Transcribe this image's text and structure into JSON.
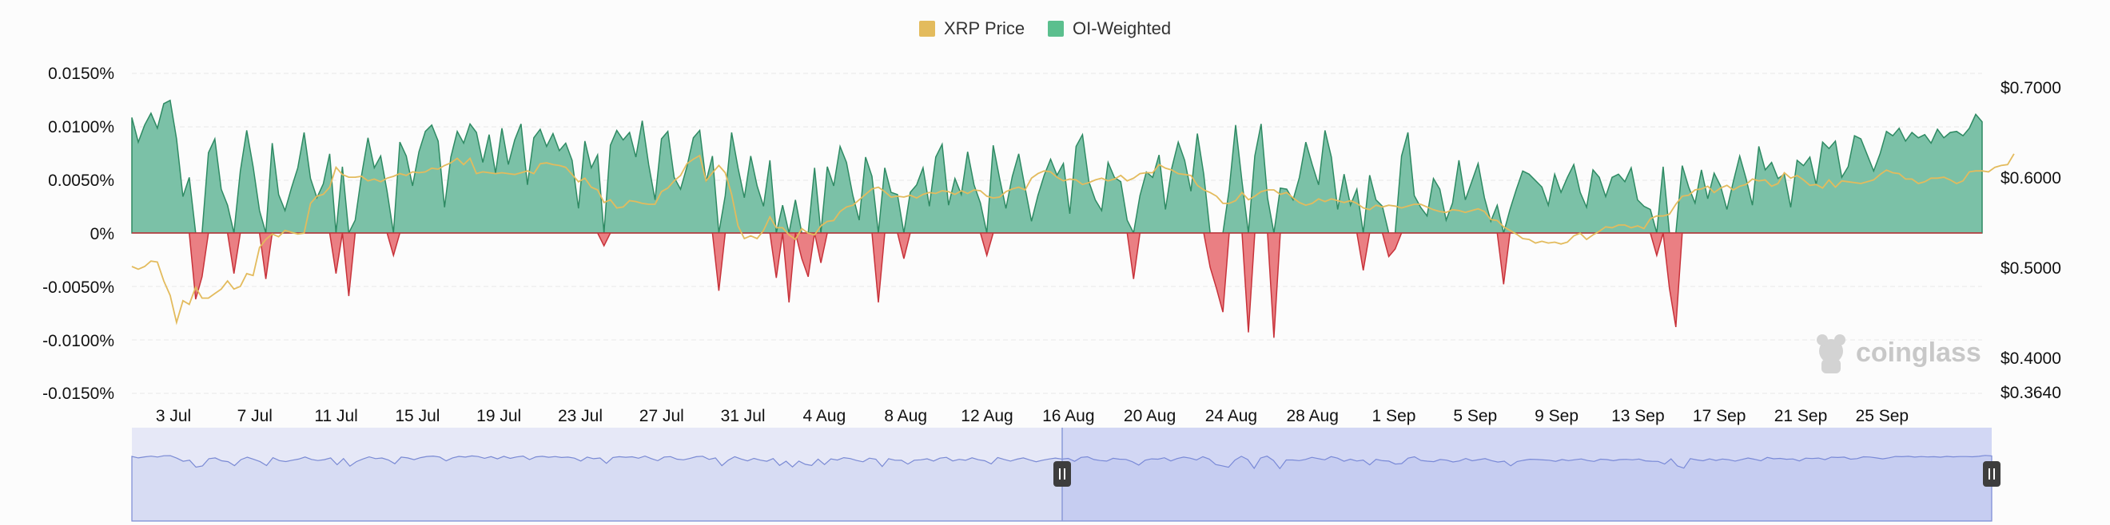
{
  "legend": [
    {
      "label": "XRP Price",
      "color": "#e3bb5d"
    },
    {
      "label": "OI-Weighted",
      "color": "#5bbf8e"
    }
  ],
  "watermark": "coinglass",
  "colors": {
    "positive_fill": "#7bc1a7",
    "positive_stroke": "#2e8a63",
    "negative_fill": "#ea7f83",
    "negative_stroke": "#c7323a",
    "price_line": "#e3bb5d",
    "grid": "#e9e9e9",
    "navigator_fill": "#e6e8f7",
    "navigator_line": "#7a8ad4",
    "navigator_selection": "rgba(120,140,235,0.18)"
  },
  "chart_data": {
    "type": "area",
    "series": [
      {
        "name": "OI-Weighted",
        "axis": "left",
        "unit": "%",
        "values": [
          0.0108,
          0.0085,
          0.0101,
          0.0112,
          0.0098,
          0.0121,
          0.0124,
          0.0088,
          0.0034,
          0.0052,
          -0.0062,
          -0.0041,
          0.0075,
          0.0088,
          0.0041,
          0.0026,
          -0.0038,
          0.0058,
          0.0096,
          0.0062,
          0.0021,
          -0.0043,
          0.0084,
          0.0036,
          0.0021,
          0.0042,
          0.0061,
          0.0094,
          0.0051,
          0.0033,
          0.0046,
          0.0074,
          -0.0038,
          0.0062,
          -0.0059,
          0.0012,
          0.0054,
          0.0089,
          0.0061,
          0.0072,
          0.0039,
          -0.0021,
          0.0085,
          0.0072,
          0.0044,
          0.0076,
          0.0095,
          0.0101,
          0.0086,
          0.0024,
          0.0071,
          0.0095,
          0.0084,
          0.0102,
          0.0094,
          0.0066,
          0.0092,
          0.0056,
          0.0098,
          0.0064,
          0.0087,
          0.0102,
          0.0045,
          0.0089,
          0.0097,
          0.0081,
          0.0093,
          0.0077,
          0.0084,
          0.0068,
          0.0023,
          0.0086,
          0.0061,
          0.0073,
          -0.0012,
          0.0082,
          0.0096,
          0.0087,
          0.0094,
          0.0071,
          0.0105,
          0.0064,
          0.0031,
          0.0088,
          0.0095,
          0.0052,
          0.0041,
          0.0062,
          0.0089,
          0.0096,
          0.0048,
          0.0072,
          -0.0054,
          0.0035,
          0.0094,
          0.0061,
          0.0033,
          0.0072,
          0.0044,
          0.0025,
          0.0068,
          -0.0042,
          0.0026,
          -0.0065,
          0.0031,
          -0.0024,
          -0.0041,
          0.0061,
          -0.0028,
          0.0062,
          0.0044,
          0.0081,
          0.0066,
          0.0035,
          0.0012,
          0.0071,
          0.0053,
          -0.0065,
          0.0061,
          0.0038,
          0.0036,
          -0.0024,
          0.0038,
          0.0045,
          0.0061,
          0.0025,
          0.0071,
          0.0083,
          0.0026,
          0.0051,
          0.0036,
          0.0076,
          0.0045,
          0.0028,
          -0.0021,
          0.0082,
          0.0051,
          0.0023,
          0.0053,
          0.0074,
          0.0042,
          0.0011,
          0.0035,
          0.0054,
          0.0069,
          0.0054,
          0.0065,
          0.0018,
          0.0081,
          0.0092,
          0.0048,
          0.0031,
          0.0021,
          0.0066,
          0.0052,
          0.0048,
          0.0012,
          -0.0043,
          0.0035,
          0.0057,
          0.0052,
          0.0073,
          0.0022,
          0.0061,
          0.0085,
          0.0068,
          0.0039,
          0.0093,
          0.0055,
          -0.0032,
          -0.0052,
          -0.0074,
          0.0041,
          0.0101,
          0.0048,
          -0.0093,
          0.0072,
          0.0102,
          0.0033,
          -0.0098,
          0.0042,
          0.0041,
          0.0031,
          0.0052,
          0.0085,
          0.0064,
          0.0045,
          0.0096,
          0.0071,
          0.0022,
          0.0055,
          0.0026,
          0.0041,
          -0.0035,
          0.0054,
          0.0031,
          0.0025,
          -0.0022,
          -0.0015,
          0.0072,
          0.0094,
          0.0035,
          0.0024,
          0.0016,
          0.0051,
          0.0041,
          0.0012,
          0.0028,
          0.0068,
          0.0031,
          0.0048,
          0.0065,
          0.0033,
          0.0011,
          0.0026,
          -0.0048,
          0.0022,
          0.0041,
          0.0058,
          0.0055,
          0.0049,
          0.0043,
          0.0026,
          0.0055,
          0.0038,
          0.0052,
          0.0064,
          0.0038,
          0.0024,
          0.0059,
          0.0052,
          0.0034,
          0.0052,
          0.0055,
          0.0048,
          0.0061,
          0.0031,
          0.0025,
          0.0022,
          -0.0021,
          0.0062,
          -0.0052,
          -0.0088,
          0.0063,
          0.0043,
          0.0028,
          0.0059,
          0.0032,
          0.0056,
          0.0044,
          0.0022,
          0.0048,
          0.0072,
          0.0051,
          0.0026,
          0.0081,
          0.0059,
          0.0066,
          0.0051,
          0.0055,
          0.0024,
          0.0068,
          0.0063,
          0.0071,
          0.0045,
          0.0085,
          0.0079,
          0.0086,
          0.0052,
          0.0062,
          0.0091,
          0.0088,
          0.0073,
          0.0058,
          0.0074,
          0.0095,
          0.0091,
          0.0098,
          0.0086,
          0.0094,
          0.0089,
          0.0092,
          0.0084,
          0.0097,
          0.0089,
          0.0094,
          0.0095,
          0.0091,
          0.0098,
          0.0111,
          0.0104
        ]
      },
      {
        "name": "XRP Price",
        "axis": "right",
        "unit": "$",
        "values": [
          0.5,
          0.497,
          0.5,
          0.506,
          0.505,
          0.484,
          0.468,
          0.438,
          0.462,
          0.458,
          0.477,
          0.465,
          0.465,
          0.47,
          0.475,
          0.484,
          0.475,
          0.478,
          0.492,
          0.49,
          0.521,
          0.53,
          0.536,
          0.533,
          0.54,
          0.538,
          0.536,
          0.537,
          0.57,
          0.578,
          0.58,
          0.588,
          0.61,
          0.602,
          0.599,
          0.599,
          0.6,
          0.595,
          0.597,
          0.594,
          0.598,
          0.6,
          0.603,
          0.601,
          0.605,
          0.604,
          0.605,
          0.609,
          0.608,
          0.612,
          0.615,
          0.62,
          0.613,
          0.62,
          0.603,
          0.605,
          0.604,
          0.603,
          0.604,
          0.603,
          0.602,
          0.604,
          0.606,
          0.603,
          0.614,
          0.615,
          0.613,
          0.612,
          0.61,
          0.602,
          0.594,
          0.598,
          0.588,
          0.585,
          0.571,
          0.574,
          0.565,
          0.566,
          0.573,
          0.572,
          0.57,
          0.569,
          0.569,
          0.583,
          0.587,
          0.595,
          0.601,
          0.614,
          0.619,
          0.623,
          0.595,
          0.604,
          0.612,
          0.604,
          0.58,
          0.545,
          0.531,
          0.534,
          0.531,
          0.54,
          0.555,
          0.543,
          0.543,
          0.535,
          0.53,
          0.542,
          0.537,
          0.535,
          0.545,
          0.55,
          0.551,
          0.561,
          0.566,
          0.568,
          0.574,
          0.58,
          0.586,
          0.588,
          0.583,
          0.577,
          0.578,
          0.577,
          0.579,
          0.576,
          0.58,
          0.582,
          0.581,
          0.584,
          0.583,
          0.58,
          0.584,
          0.581,
          0.585,
          0.584,
          0.578,
          0.576,
          0.577,
          0.583,
          0.586,
          0.588,
          0.585,
          0.598,
          0.603,
          0.606,
          0.605,
          0.599,
          0.595,
          0.597,
          0.596,
          0.591,
          0.593,
          0.596,
          0.598,
          0.595,
          0.597,
          0.601,
          0.595,
          0.598,
          0.603,
          0.604,
          0.604,
          0.613,
          0.609,
          0.607,
          0.603,
          0.602,
          0.601,
          0.59,
          0.585,
          0.582,
          0.578,
          0.57,
          0.57,
          0.573,
          0.582,
          0.574,
          0.578,
          0.583,
          0.585,
          0.585,
          0.58,
          0.582,
          0.576,
          0.571,
          0.568,
          0.57,
          0.575,
          0.572,
          0.575,
          0.573,
          0.571,
          0.573,
          0.57,
          0.565,
          0.563,
          0.568,
          0.566,
          0.568,
          0.567,
          0.565,
          0.567,
          0.569,
          0.569,
          0.566,
          0.563,
          0.561,
          0.56,
          0.563,
          0.562,
          0.56,
          0.562,
          0.564,
          0.561,
          0.552,
          0.551,
          0.544,
          0.54,
          0.536,
          0.531,
          0.53,
          0.526,
          0.528,
          0.526,
          0.527,
          0.525,
          0.527,
          0.534,
          0.537,
          0.53,
          0.535,
          0.539,
          0.544,
          0.543,
          0.546,
          0.546,
          0.543,
          0.545,
          0.542,
          0.553,
          0.556,
          0.556,
          0.558,
          0.569,
          0.578,
          0.579,
          0.585,
          0.586,
          0.589,
          0.582,
          0.587,
          0.59,
          0.585,
          0.589,
          0.591,
          0.597,
          0.595,
          0.596,
          0.589,
          0.592,
          0.604,
          0.598,
          0.601,
          0.596,
          0.59,
          0.591,
          0.587,
          0.596,
          0.588,
          0.595,
          0.594,
          0.593,
          0.592,
          0.594,
          0.596,
          0.602,
          0.607,
          0.604,
          0.603,
          0.597,
          0.597,
          0.592,
          0.594,
          0.598,
          0.598,
          0.599,
          0.596,
          0.592,
          0.595,
          0.605,
          0.606,
          0.606,
          0.605,
          0.61,
          0.612,
          0.613,
          0.625
        ]
      }
    ],
    "x_labels": [
      "3 Jul",
      "7 Jul",
      "11 Jul",
      "15 Jul",
      "19 Jul",
      "23 Jul",
      "27 Jul",
      "31 Jul",
      "4 Aug",
      "8 Aug",
      "12 Aug",
      "16 Aug",
      "20 Aug",
      "24 Aug",
      "28 Aug",
      "1 Sep",
      "5 Sep",
      "9 Sep",
      "13 Sep",
      "17 Sep",
      "21 Sep",
      "25 Sep"
    ],
    "y_left": {
      "ticks": [
        "0.0150%",
        "0.0100%",
        "0.0050%",
        "0%",
        "-0.0050%",
        "-0.0100%",
        "-0.0150%"
      ],
      "range": [
        -0.015,
        0.015
      ]
    },
    "y_right": {
      "ticks": [
        "$0.7000",
        "$0.6000",
        "$0.5000",
        "$0.4000",
        "$0.3640"
      ],
      "range": [
        0.364,
        0.72
      ]
    },
    "grid": "horizontal dashed",
    "legend_position": "top-center"
  }
}
